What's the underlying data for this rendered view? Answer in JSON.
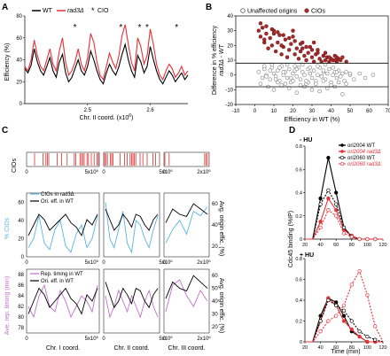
{
  "panels": {
    "A": {
      "label": "A",
      "legend": [
        "WT",
        "rad3Δ",
        "CIO"
      ],
      "ylabel": "Efficiency (%)",
      "xlabel": "Chr. II coord. (x10",
      "xlabel_sup": "6",
      "xlabel_end": ")",
      "yticks": [
        "0",
        "20",
        "40",
        "60",
        "80"
      ],
      "xticks": [
        "2.5",
        "2.6"
      ]
    },
    "B": {
      "label": "B",
      "legend": [
        "Unaffected origins",
        "CIOs"
      ],
      "ylabel1": "Difference in % efficiency",
      "ylabel2": "rad3Δ - WT",
      "xlabel": "Efficiency in WT (%)",
      "yticks": [
        "-20",
        "-10",
        "0",
        "10",
        "20",
        "30",
        "40"
      ],
      "xticks": [
        "-10",
        "0",
        "10",
        "20",
        "30",
        "40",
        "50",
        "60",
        "70"
      ]
    },
    "C": {
      "label": "C",
      "cios_label": "CIOs",
      "mid_ylabel": "% CIOs",
      "mid_ylabel_r": "Avg. origin effic. (%)",
      "mid_legend": [
        "CIOs in rad3Δ",
        "Ori. eff. in WT"
      ],
      "mid_yticks": [
        "0",
        "20",
        "40",
        "60"
      ],
      "mid_yticks_r": [
        "20",
        "40",
        "60"
      ],
      "bot_ylabel": "Ave. rep. timing (min)",
      "bot_ylabel_r": "Avg. origin effic. (%)",
      "bot_legend": [
        "Rep. timing in WT",
        "Ori. eff. in WT"
      ],
      "bot_yticks": [
        "78",
        "80",
        "82",
        "84",
        "86",
        "88"
      ],
      "bot_yticks_r": [
        "20",
        "30",
        "40",
        "50",
        "60"
      ],
      "xtick_zero": "0",
      "xtick_5": "5x10",
      "xtick_2": "2x10",
      "xtick_sup": "6",
      "chr_labels": [
        "Chr. I coord.",
        "Chr. II coord.",
        "Chr. III coord."
      ]
    },
    "D": {
      "label": "D",
      "top_title": "- HU",
      "bot_title": "+ HU",
      "legend": [
        "ori2004 WT",
        "ori2004 rad3Δ",
        "ori2060 WT",
        "ori2060 rad3Δ"
      ],
      "ylabel": "Cdc45 binding (%IP)",
      "xlabel": "Time (min)",
      "yticks": [
        "0",
        "0.2",
        "0.4",
        "0.6",
        "0.8"
      ],
      "xticks": [
        "20",
        "40",
        "60",
        "80",
        "100",
        "120"
      ]
    }
  },
  "colors": {
    "wt": "#000000",
    "rad3": "#e8303a",
    "cio_dark": "#8b1a1a",
    "cio_fill": "#a52a2a",
    "cios_bar": "#e03030",
    "cio_line": "#5ab4e0",
    "rep_timing": "#c070c8"
  },
  "chart_data": [
    {
      "type": "line",
      "panel": "A",
      "xlim": [
        2.4,
        2.66
      ],
      "ylim": [
        0,
        80
      ],
      "series": [
        {
          "name": "WT",
          "x": [
            2.4,
            2.405,
            2.41,
            2.415,
            2.42,
            2.425,
            2.43,
            2.435,
            2.44,
            2.445,
            2.45,
            2.455,
            2.46,
            2.465,
            2.47,
            2.475,
            2.48,
            2.485,
            2.49,
            2.495,
            2.5,
            2.505,
            2.51,
            2.515,
            2.52,
            2.525,
            2.53,
            2.535,
            2.54,
            2.545,
            2.55,
            2.555,
            2.56,
            2.565,
            2.57,
            2.575,
            2.58,
            2.585,
            2.59,
            2.595,
            2.6,
            2.605,
            2.61,
            2.615,
            2.62,
            2.625,
            2.63,
            2.635,
            2.64,
            2.645,
            2.65,
            2.655,
            2.66
          ],
          "values": [
            32,
            28,
            35,
            50,
            38,
            30,
            26,
            34,
            42,
            30,
            24,
            38,
            45,
            28,
            20,
            24,
            32,
            40,
            30,
            26,
            34,
            48,
            40,
            30,
            22,
            18,
            28,
            36,
            30,
            26,
            34,
            45,
            54,
            40,
            30,
            24,
            44,
            38,
            28,
            34,
            52,
            40,
            30,
            22,
            18,
            24,
            30,
            26,
            20,
            24,
            28,
            22,
            26
          ]
        },
        {
          "name": "rad3Δ",
          "x": [
            2.4,
            2.405,
            2.41,
            2.415,
            2.42,
            2.425,
            2.43,
            2.435,
            2.44,
            2.445,
            2.45,
            2.455,
            2.46,
            2.465,
            2.47,
            2.475,
            2.48,
            2.485,
            2.49,
            2.495,
            2.5,
            2.505,
            2.51,
            2.515,
            2.52,
            2.525,
            2.53,
            2.535,
            2.54,
            2.545,
            2.55,
            2.555,
            2.56,
            2.565,
            2.57,
            2.575,
            2.58,
            2.585,
            2.59,
            2.595,
            2.6,
            2.605,
            2.61,
            2.615,
            2.62,
            2.625,
            2.63,
            2.635,
            2.64,
            2.645,
            2.65,
            2.655,
            2.66
          ],
          "values": [
            34,
            30,
            40,
            58,
            44,
            34,
            30,
            40,
            50,
            36,
            30,
            48,
            60,
            38,
            26,
            30,
            38,
            50,
            36,
            30,
            42,
            64,
            56,
            38,
            26,
            22,
            34,
            46,
            38,
            32,
            44,
            62,
            72,
            54,
            38,
            30,
            60,
            52,
            36,
            44,
            68,
            54,
            36,
            26,
            22,
            30,
            36,
            32,
            24,
            28,
            34,
            26,
            30
          ]
        }
      ],
      "cio_markers_x": [
        2.48,
        2.553,
        2.583,
        2.595,
        2.642
      ]
    },
    {
      "type": "scatter",
      "panel": "B",
      "xlim": [
        -10,
        70
      ],
      "ylim": [
        -20,
        40
      ],
      "hlines": [
        8,
        -8
      ],
      "series": [
        {
          "name": "Unaffected origins",
          "x": [
            2,
            4,
            5,
            6,
            8,
            9,
            10,
            11,
            12,
            13,
            14,
            15,
            16,
            17,
            18,
            19,
            20,
            21,
            22,
            23,
            24,
            25,
            26,
            27,
            28,
            29,
            30,
            31,
            32,
            33,
            34,
            35,
            36,
            37,
            38,
            39,
            40,
            41,
            42,
            43,
            44,
            45,
            46,
            47,
            48,
            50,
            52,
            55,
            58,
            62,
            3,
            7,
            10,
            14,
            18,
            22,
            26,
            30,
            34,
            38,
            42,
            46,
            5,
            9,
            13,
            17,
            21,
            25,
            29,
            33,
            37,
            41,
            12,
            16,
            20,
            24,
            28,
            32,
            36,
            40,
            44,
            48,
            8,
            15,
            22,
            29,
            36,
            43,
            50,
            6,
            11,
            19,
            27,
            35
          ],
          "y": [
            2,
            -2,
            4,
            0,
            -3,
            5,
            1,
            -1,
            3,
            -4,
            6,
            0,
            2,
            -2,
            4,
            -5,
            1,
            3,
            -1,
            5,
            -3,
            2,
            0,
            -6,
            4,
            1,
            -2,
            3,
            -4,
            0,
            5,
            -1,
            2,
            -3,
            1,
            4,
            -5,
            0,
            2,
            -2,
            3,
            -1,
            1,
            -4,
            2,
            0,
            -3,
            1,
            -2,
            0,
            -6,
            -8,
            -10,
            -7,
            -9,
            -12,
            -8,
            -10,
            -11,
            -9,
            -8,
            -13,
            6,
            7,
            5,
            7,
            6,
            7,
            5,
            6,
            7,
            5,
            -5,
            -6,
            -4,
            -7,
            -5,
            -6,
            -4,
            -7,
            -5,
            -6,
            3,
            2,
            4,
            1,
            3,
            2,
            1,
            -1,
            -3,
            -2,
            -4,
            -1
          ]
        },
        {
          "name": "CIOs",
          "x": [
            2,
            3,
            4,
            5,
            6,
            7,
            8,
            9,
            10,
            11,
            12,
            13,
            14,
            15,
            16,
            17,
            18,
            19,
            20,
            21,
            22,
            23,
            24,
            25,
            26,
            27,
            28,
            29,
            30,
            31,
            32,
            33,
            34,
            35,
            36,
            37,
            38,
            39,
            40,
            41,
            42,
            43,
            44,
            45,
            46,
            48,
            3,
            6,
            9,
            12,
            15,
            18,
            21,
            24,
            27,
            30,
            33,
            36,
            39,
            42,
            5,
            10,
            14,
            20,
            25,
            31,
            37,
            43
          ],
          "y": [
            30,
            26,
            32,
            22,
            28,
            18,
            25,
            20,
            30,
            16,
            22,
            27,
            14,
            19,
            24,
            12,
            17,
            21,
            26,
            14,
            18,
            11,
            16,
            22,
            13,
            10,
            15,
            19,
            12,
            9,
            14,
            17,
            11,
            9,
            13,
            10,
            12,
            9,
            11,
            10,
            13,
            9,
            11,
            10,
            12,
            9,
            35,
            33,
            31,
            29,
            27,
            25,
            23,
            21,
            19,
            17,
            15,
            13,
            12,
            10,
            24,
            28,
            20,
            30,
            18,
            22,
            15,
            12
          ]
        }
      ]
    },
    {
      "type": "line",
      "panel": "C",
      "chromosomes": [
        "I",
        "II",
        "III"
      ],
      "series": [
        {
          "name": "CIOs in rad3Δ",
          "values": [
            10,
            20,
            45,
            15,
            8,
            30,
            40,
            12,
            5,
            25,
            35,
            10,
            20,
            45,
            60,
            20,
            10,
            30,
            50,
            15,
            5,
            40,
            35,
            20,
            10,
            30,
            45,
            15,
            30,
            40,
            25,
            50,
            45,
            55
          ]
        },
        {
          "name": "Ori. eff. in WT",
          "values": [
            30,
            40,
            50,
            45,
            35,
            40,
            45,
            50,
            42,
            38,
            30,
            45,
            40,
            50,
            55,
            45,
            35,
            40,
            50,
            45,
            38,
            50,
            48,
            40,
            35,
            45,
            50,
            42,
            55,
            50,
            48,
            60,
            55,
            50
          ]
        },
        {
          "name": "Rep. timing in WT",
          "values": [
            82,
            80,
            84,
            86,
            82,
            81,
            85,
            83,
            80,
            82,
            84,
            83,
            81,
            86,
            84,
            80,
            82,
            85,
            83,
            81,
            84,
            82,
            80,
            83,
            85,
            82,
            80,
            81,
            86,
            87,
            84,
            82,
            85,
            83
          ]
        }
      ]
    },
    {
      "type": "line",
      "panel": "D",
      "x": [
        20,
        30,
        40,
        50,
        60,
        70,
        80,
        90,
        100,
        110,
        120
      ],
      "subplots": [
        {
          "title": "- HU",
          "ylim": [
            0,
            0.8
          ],
          "series": [
            {
              "name": "ori2004 WT",
              "values": [
                0.0,
                0.0,
                0.35,
                0.7,
                0.4,
                0.1,
                0.02,
                0.0,
                0.0,
                0.0,
                0.0
              ]
            },
            {
              "name": "ori2004 rad3Δ",
              "values": [
                0.0,
                0.0,
                0.15,
                0.35,
                0.25,
                0.08,
                0.03,
                0.0,
                0.0,
                0.0,
                0.0
              ]
            },
            {
              "name": "ori2060 WT",
              "values": [
                0.0,
                0.0,
                0.3,
                0.42,
                0.3,
                0.1,
                0.02,
                0.0,
                0.0,
                0.0,
                0.0
              ]
            },
            {
              "name": "ori2060 rad3Δ",
              "values": [
                0.0,
                0.0,
                0.1,
                0.25,
                0.2,
                0.05,
                0.02,
                0.0,
                0.0,
                0.0,
                0.0
              ]
            }
          ]
        },
        {
          "title": "+ HU",
          "ylim": [
            0,
            0.8
          ],
          "series": [
            {
              "name": "ori2004 WT",
              "values": [
                0.0,
                0.0,
                0.25,
                0.42,
                0.38,
                0.25,
                0.1,
                0.05,
                0.0,
                0.0,
                0.0
              ]
            },
            {
              "name": "ori2004 rad3Δ",
              "values": [
                0.0,
                0.0,
                0.2,
                0.42,
                0.35,
                0.2,
                0.12,
                0.05,
                0.0,
                0.0,
                0.0
              ]
            },
            {
              "name": "ori2060 WT",
              "values": [
                0.0,
                0.0,
                0.2,
                0.4,
                0.35,
                0.3,
                0.2,
                0.1,
                0.05,
                0.02,
                0.0
              ]
            },
            {
              "name": "ori2060 rad3Δ",
              "values": [
                0.0,
                0.0,
                0.1,
                0.2,
                0.25,
                0.35,
                0.55,
                0.68,
                0.45,
                0.15,
                0.0
              ]
            }
          ]
        }
      ]
    }
  ]
}
